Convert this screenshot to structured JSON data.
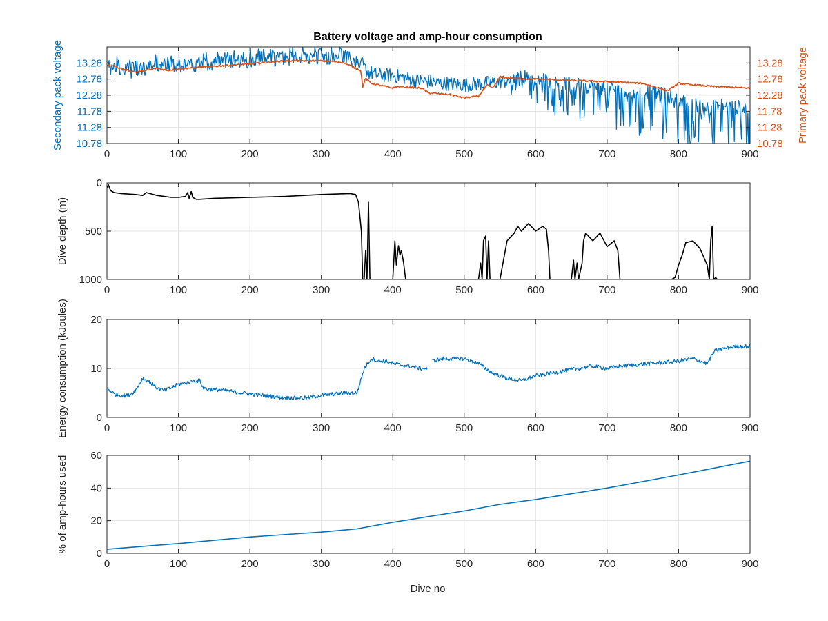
{
  "figure": {
    "title": "Battery voltage and amp-hour consumption",
    "xlabel": "Dive no",
    "colors": {
      "blue": "#0072BD",
      "orange": "#D95319",
      "black": "#000000",
      "grid": "#e3e3e3"
    }
  },
  "chart_data": [
    {
      "type": "line",
      "title": "Battery voltage and amp-hour consumption",
      "xlim": [
        0,
        900
      ],
      "xticks": [
        "0",
        "100",
        "200",
        "300",
        "400",
        "500",
        "600",
        "700",
        "800",
        "900"
      ],
      "ylabel_left": "Secondary pack voltage",
      "ylabel_right": "Primary pack voltage",
      "ylim": [
        10.78,
        13.78
      ],
      "yticks": [
        "10.78",
        "11.28",
        "11.78",
        "12.28",
        "12.78",
        "13.28"
      ],
      "grid": true,
      "series": [
        {
          "axis": "left",
          "color": "#0072BD",
          "noise": 0.45,
          "spikes": true,
          "x": [
            0,
            20,
            40,
            60,
            80,
            100,
            130,
            160,
            200,
            250,
            300,
            330,
            355,
            365,
            380,
            400,
            430,
            470,
            500,
            530,
            550,
            570,
            590,
            620,
            650,
            700,
            750,
            780,
            800,
            820,
            840,
            860,
            880,
            900
          ],
          "y": [
            13.05,
            13.1,
            13.0,
            13.1,
            13.15,
            13.1,
            13.2,
            13.3,
            13.35,
            13.4,
            13.45,
            13.45,
            13.3,
            13.0,
            12.9,
            12.9,
            12.75,
            12.65,
            12.6,
            12.65,
            12.7,
            12.75,
            12.9,
            12.7,
            12.6,
            12.5,
            12.4,
            12.3,
            12.1,
            12.0,
            11.9,
            11.95,
            11.9,
            11.9
          ]
        },
        {
          "axis": "right",
          "color": "#D95319",
          "noise": 0.05,
          "spikes": false,
          "x": [
            0,
            10,
            20,
            40,
            55,
            70,
            85,
            100,
            130,
            200,
            250,
            300,
            330,
            355,
            358,
            362,
            370,
            400,
            405,
            440,
            450,
            480,
            500,
            520,
            532,
            540,
            550,
            570,
            600,
            700,
            750,
            785,
            800,
            820,
            850,
            880,
            900
          ],
          "y": [
            13.2,
            13.2,
            13.1,
            13.0,
            13.05,
            13.12,
            13.05,
            13.1,
            13.15,
            13.25,
            13.35,
            13.35,
            13.3,
            13.05,
            12.55,
            12.8,
            12.65,
            12.5,
            12.55,
            12.5,
            12.35,
            12.3,
            12.2,
            12.25,
            12.6,
            12.5,
            12.85,
            12.8,
            12.78,
            12.7,
            12.65,
            12.42,
            12.65,
            12.6,
            12.55,
            12.52,
            12.5
          ]
        }
      ]
    },
    {
      "type": "line",
      "xlim": [
        0,
        900
      ],
      "xticks": [
        "0",
        "100",
        "200",
        "300",
        "400",
        "500",
        "600",
        "700",
        "800",
        "900"
      ],
      "ylabel": "Dive depth (m)",
      "ylim": [
        0,
        1000
      ],
      "y_reversed": true,
      "yticks": [
        "0",
        "500",
        "1000"
      ],
      "grid": true,
      "series": [
        {
          "color": "#000000",
          "noise": 0,
          "x": [
            0,
            2,
            5,
            10,
            20,
            40,
            50,
            55,
            60,
            70,
            80,
            90,
            100,
            110,
            113,
            115,
            118,
            120,
            125,
            130,
            150,
            200,
            250,
            300,
            340,
            348,
            352,
            356,
            358,
            360,
            362,
            364,
            366,
            368,
            370,
            380,
            400,
            403,
            405,
            408,
            410,
            412,
            415,
            418,
            420,
            450,
            500,
            520,
            523,
            525,
            527,
            530,
            532,
            534,
            536,
            540,
            550,
            555,
            560,
            570,
            575,
            580,
            590,
            600,
            610,
            615,
            618,
            620,
            640,
            650,
            653,
            655,
            658,
            660,
            665,
            667,
            670,
            675,
            680,
            690,
            700,
            710,
            715,
            718,
            720,
            780,
            790,
            795,
            800,
            805,
            810,
            820,
            830,
            840,
            843,
            845,
            847,
            849,
            852,
            854,
            860,
            900
          ],
          "y": [
            50,
            20,
            80,
            100,
            110,
            120,
            130,
            100,
            110,
            130,
            140,
            150,
            150,
            140,
            100,
            160,
            90,
            150,
            170,
            170,
            160,
            150,
            140,
            120,
            110,
            120,
            200,
            500,
            1000,
            1000,
            700,
            1000,
            200,
            1000,
            1000,
            1000,
            1000,
            600,
            850,
            650,
            750,
            700,
            820,
            1000,
            1000,
            1000,
            1000,
            1000,
            830,
            1000,
            600,
            550,
            1000,
            600,
            1000,
            1000,
            1000,
            800,
            600,
            520,
            450,
            500,
            420,
            500,
            450,
            480,
            700,
            1000,
            1000,
            1000,
            800,
            1000,
            830,
            1000,
            830,
            600,
            520,
            560,
            600,
            520,
            660,
            600,
            700,
            1000,
            1000,
            1000,
            1000,
            980,
            850,
            750,
            620,
            600,
            680,
            850,
            1000,
            600,
            450,
            1000,
            980,
            1000,
            1000,
            1000
          ]
        }
      ]
    },
    {
      "type": "line",
      "xlim": [
        0,
        900
      ],
      "xticks": [
        "0",
        "100",
        "200",
        "300",
        "400",
        "500",
        "600",
        "700",
        "800",
        "900"
      ],
      "ylabel": "Energy consumption (kJoules)",
      "ylim": [
        0,
        20
      ],
      "yticks": [
        "0",
        "10",
        "20"
      ],
      "grid": true,
      "series": [
        {
          "color": "#0072BD",
          "noise": 0.8,
          "gap": [
            448,
            455
          ],
          "x": [
            0,
            10,
            20,
            30,
            40,
            50,
            60,
            70,
            80,
            90,
            100,
            110,
            120,
            130,
            135,
            140,
            160,
            200,
            250,
            280,
            300,
            330,
            350,
            360,
            370,
            380,
            390,
            400,
            420,
            440,
            448,
            455,
            470,
            500,
            520,
            540,
            560,
            580,
            600,
            640,
            680,
            700,
            720,
            760,
            800,
            820,
            840,
            850,
            860,
            880,
            900
          ],
          "y": [
            6,
            4.8,
            4.5,
            4.5,
            5.5,
            8.0,
            7.2,
            6.0,
            5.5,
            6.0,
            6.8,
            7.0,
            7.5,
            7.5,
            6.0,
            5.8,
            5.6,
            4.8,
            4.0,
            4.0,
            4.5,
            5.0,
            5.0,
            10.0,
            12.0,
            11.5,
            11.5,
            11.0,
            10.5,
            10.0,
            10.0,
            11.5,
            12.0,
            12.0,
            11.0,
            9.0,
            8.0,
            7.5,
            8.5,
            9.5,
            10.5,
            10.0,
            10.5,
            11.0,
            11.5,
            12.0,
            11.0,
            13.5,
            14.0,
            14.5,
            14.5
          ]
        }
      ]
    },
    {
      "type": "line",
      "xlim": [
        0,
        900
      ],
      "xticks": [
        "0",
        "100",
        "200",
        "300",
        "400",
        "500",
        "600",
        "700",
        "800",
        "900"
      ],
      "xlabel": "Dive no",
      "ylabel": "% of amp-hours used",
      "ylim": [
        0,
        60
      ],
      "yticks": [
        "0",
        "20",
        "40",
        "60"
      ],
      "grid": true,
      "series": [
        {
          "color": "#0072BD",
          "noise": 0,
          "x": [
            0,
            100,
            200,
            300,
            350,
            400,
            500,
            550,
            600,
            700,
            800,
            900
          ],
          "y": [
            2.5,
            6.0,
            10.0,
            13.0,
            15.0,
            19.0,
            26.0,
            30.0,
            33.0,
            40.0,
            48.0,
            56.5
          ]
        }
      ]
    }
  ]
}
